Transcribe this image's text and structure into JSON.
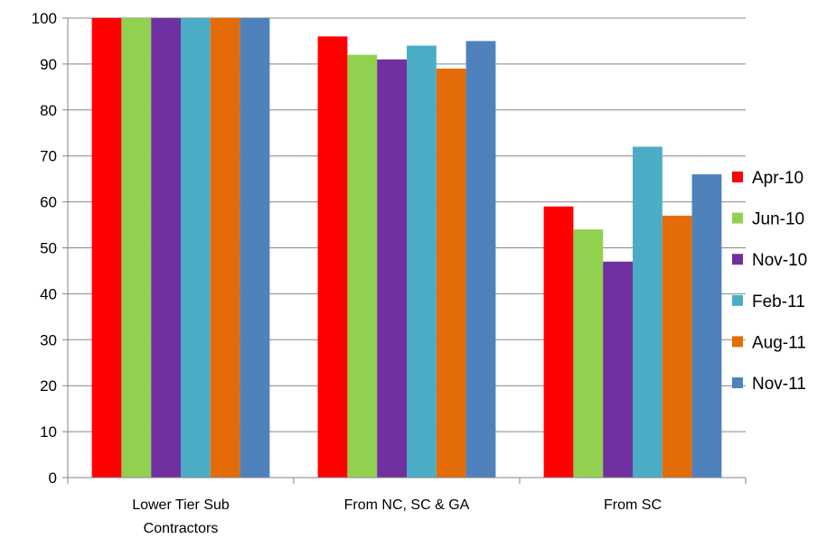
{
  "chart_data": {
    "type": "bar",
    "title": "",
    "xlabel": "",
    "ylabel": "",
    "ylim": [
      0,
      100
    ],
    "yticks": [
      0,
      10,
      20,
      30,
      40,
      50,
      60,
      70,
      80,
      90,
      100
    ],
    "grid": true,
    "legend_position": "right",
    "categories": [
      [
        "Lower Tier Sub",
        "Contractors"
      ],
      [
        "From NC, SC & GA"
      ],
      [
        "From SC"
      ]
    ],
    "series": [
      {
        "name": "Apr-10",
        "color": "#FF0000",
        "values": [
          100,
          96,
          59
        ]
      },
      {
        "name": "Jun-10",
        "color": "#92D050",
        "values": [
          100,
          92,
          54
        ]
      },
      {
        "name": "Nov-10",
        "color": "#7030A0",
        "values": [
          100,
          91,
          47
        ]
      },
      {
        "name": "Feb-11",
        "color": "#4BACC6",
        "values": [
          100,
          94,
          72
        ]
      },
      {
        "name": "Aug-11",
        "color": "#E36C09",
        "values": [
          100,
          89,
          57
        ]
      },
      {
        "name": "Nov-11",
        "color": "#4F81BD",
        "values": [
          100,
          95,
          66
        ]
      }
    ]
  }
}
